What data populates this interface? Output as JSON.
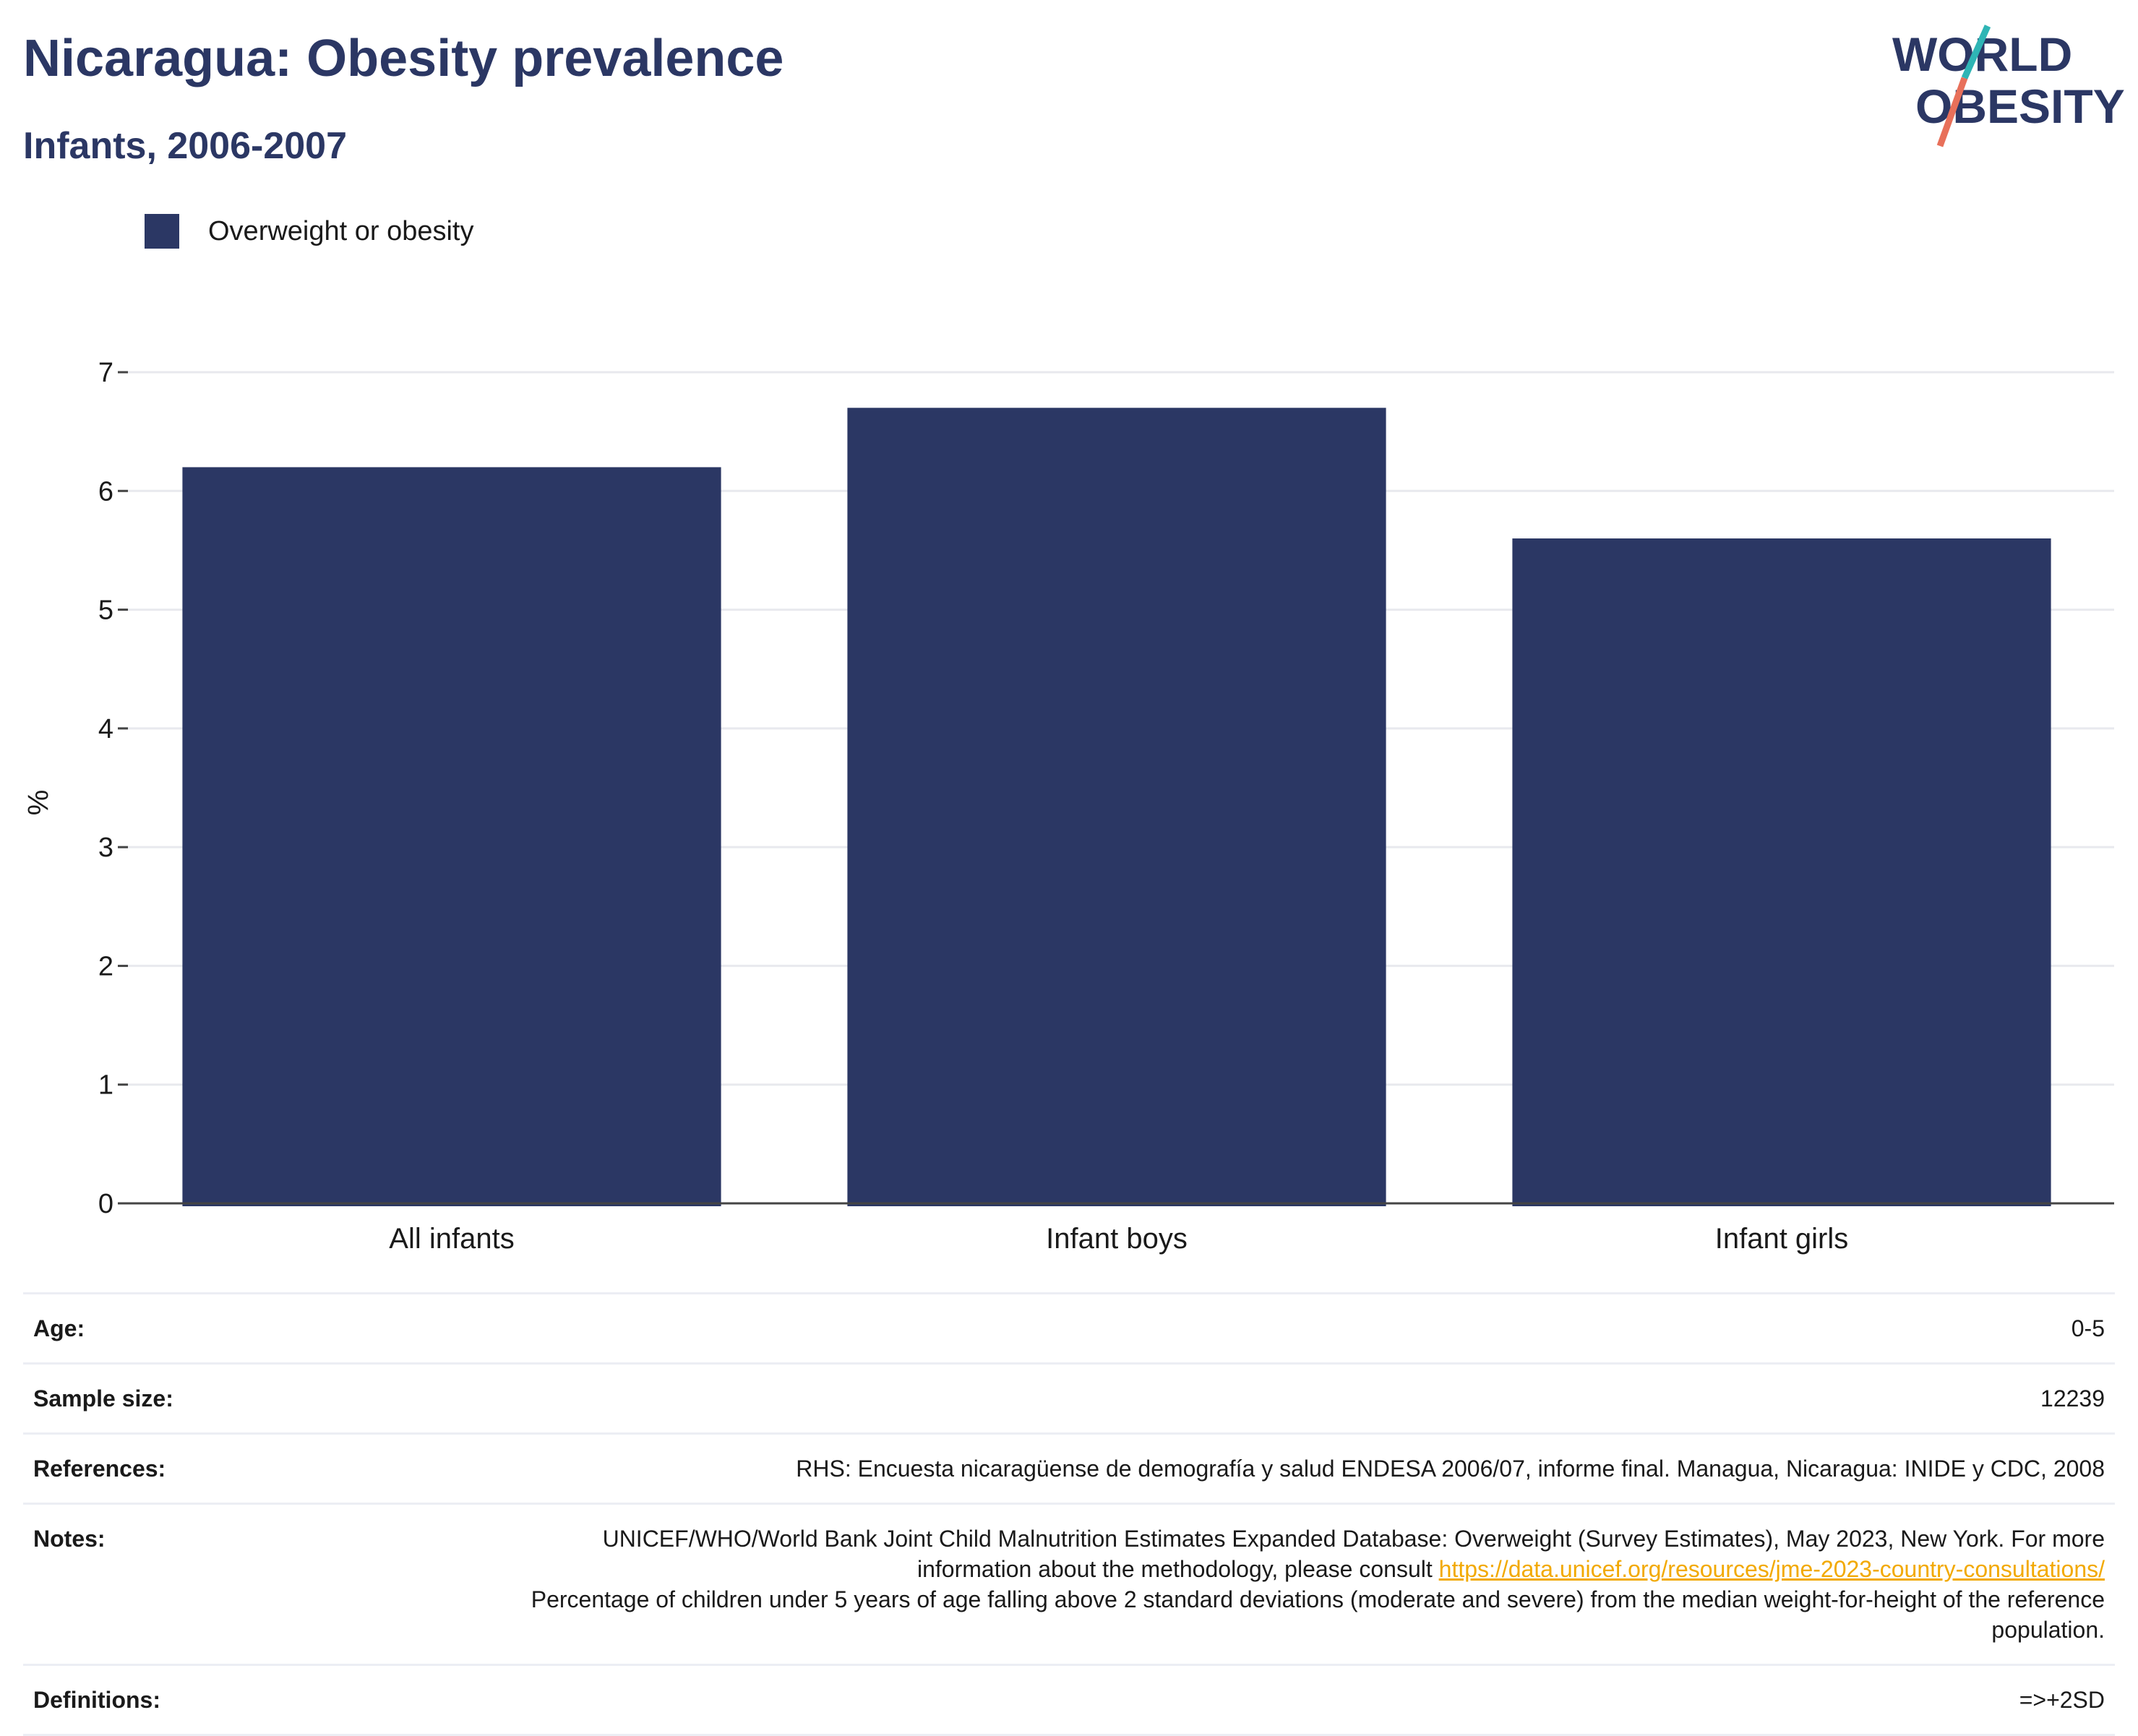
{
  "header": {
    "title": "Nicaragua: Obesity prevalence",
    "subtitle": "Infants, 2006-2007"
  },
  "logo": {
    "line1": "WORLD",
    "line2": "OBESITY",
    "colors": {
      "text": "#2b3764",
      "slash_teal": "#2fb5b5",
      "slash_coral": "#e8705a"
    }
  },
  "colors": {
    "bar": "#2b3764",
    "grid": "#e8e9ee",
    "axis": "#444444",
    "link": "#f2a900"
  },
  "chart_data": {
    "type": "bar",
    "categories": [
      "All infants",
      "Infant boys",
      "Infant girls"
    ],
    "series": [
      {
        "name": "Overweight or obesity",
        "values": [
          6.2,
          6.7,
          5.6
        ]
      }
    ],
    "ylabel": "%",
    "ylim": [
      0,
      7
    ],
    "yticks": [
      0,
      1,
      2,
      3,
      4,
      5,
      6,
      7
    ],
    "grid": true,
    "legend": "top-left"
  },
  "info": {
    "age_label": "Age:",
    "age_value": "0-5",
    "sample_label": "Sample size:",
    "sample_value": "12239",
    "references_label": "References:",
    "references_value": "RHS: Encuesta nicaragüense de demografía y salud ENDESA 2006/07, informe final. Managua, Nicaragua: INIDE y CDC, 2008",
    "notes_label": "Notes:",
    "notes_text1": "UNICEF/WHO/World Bank Joint Child Malnutrition Estimates Expanded Database: Overweight (Survey Estimates), May 2023, New York. For more information about the methodology, please consult ",
    "notes_link": "https://data.unicef.org/resources/jme-2023-country-consultations/",
    "notes_text2": "Percentage of children under 5 years of age falling above 2 standard deviations (moderate and severe) from the median weight-for-height of the reference population.",
    "definitions_label": "Definitions:",
    "definitions_value": "=>+2SD"
  }
}
